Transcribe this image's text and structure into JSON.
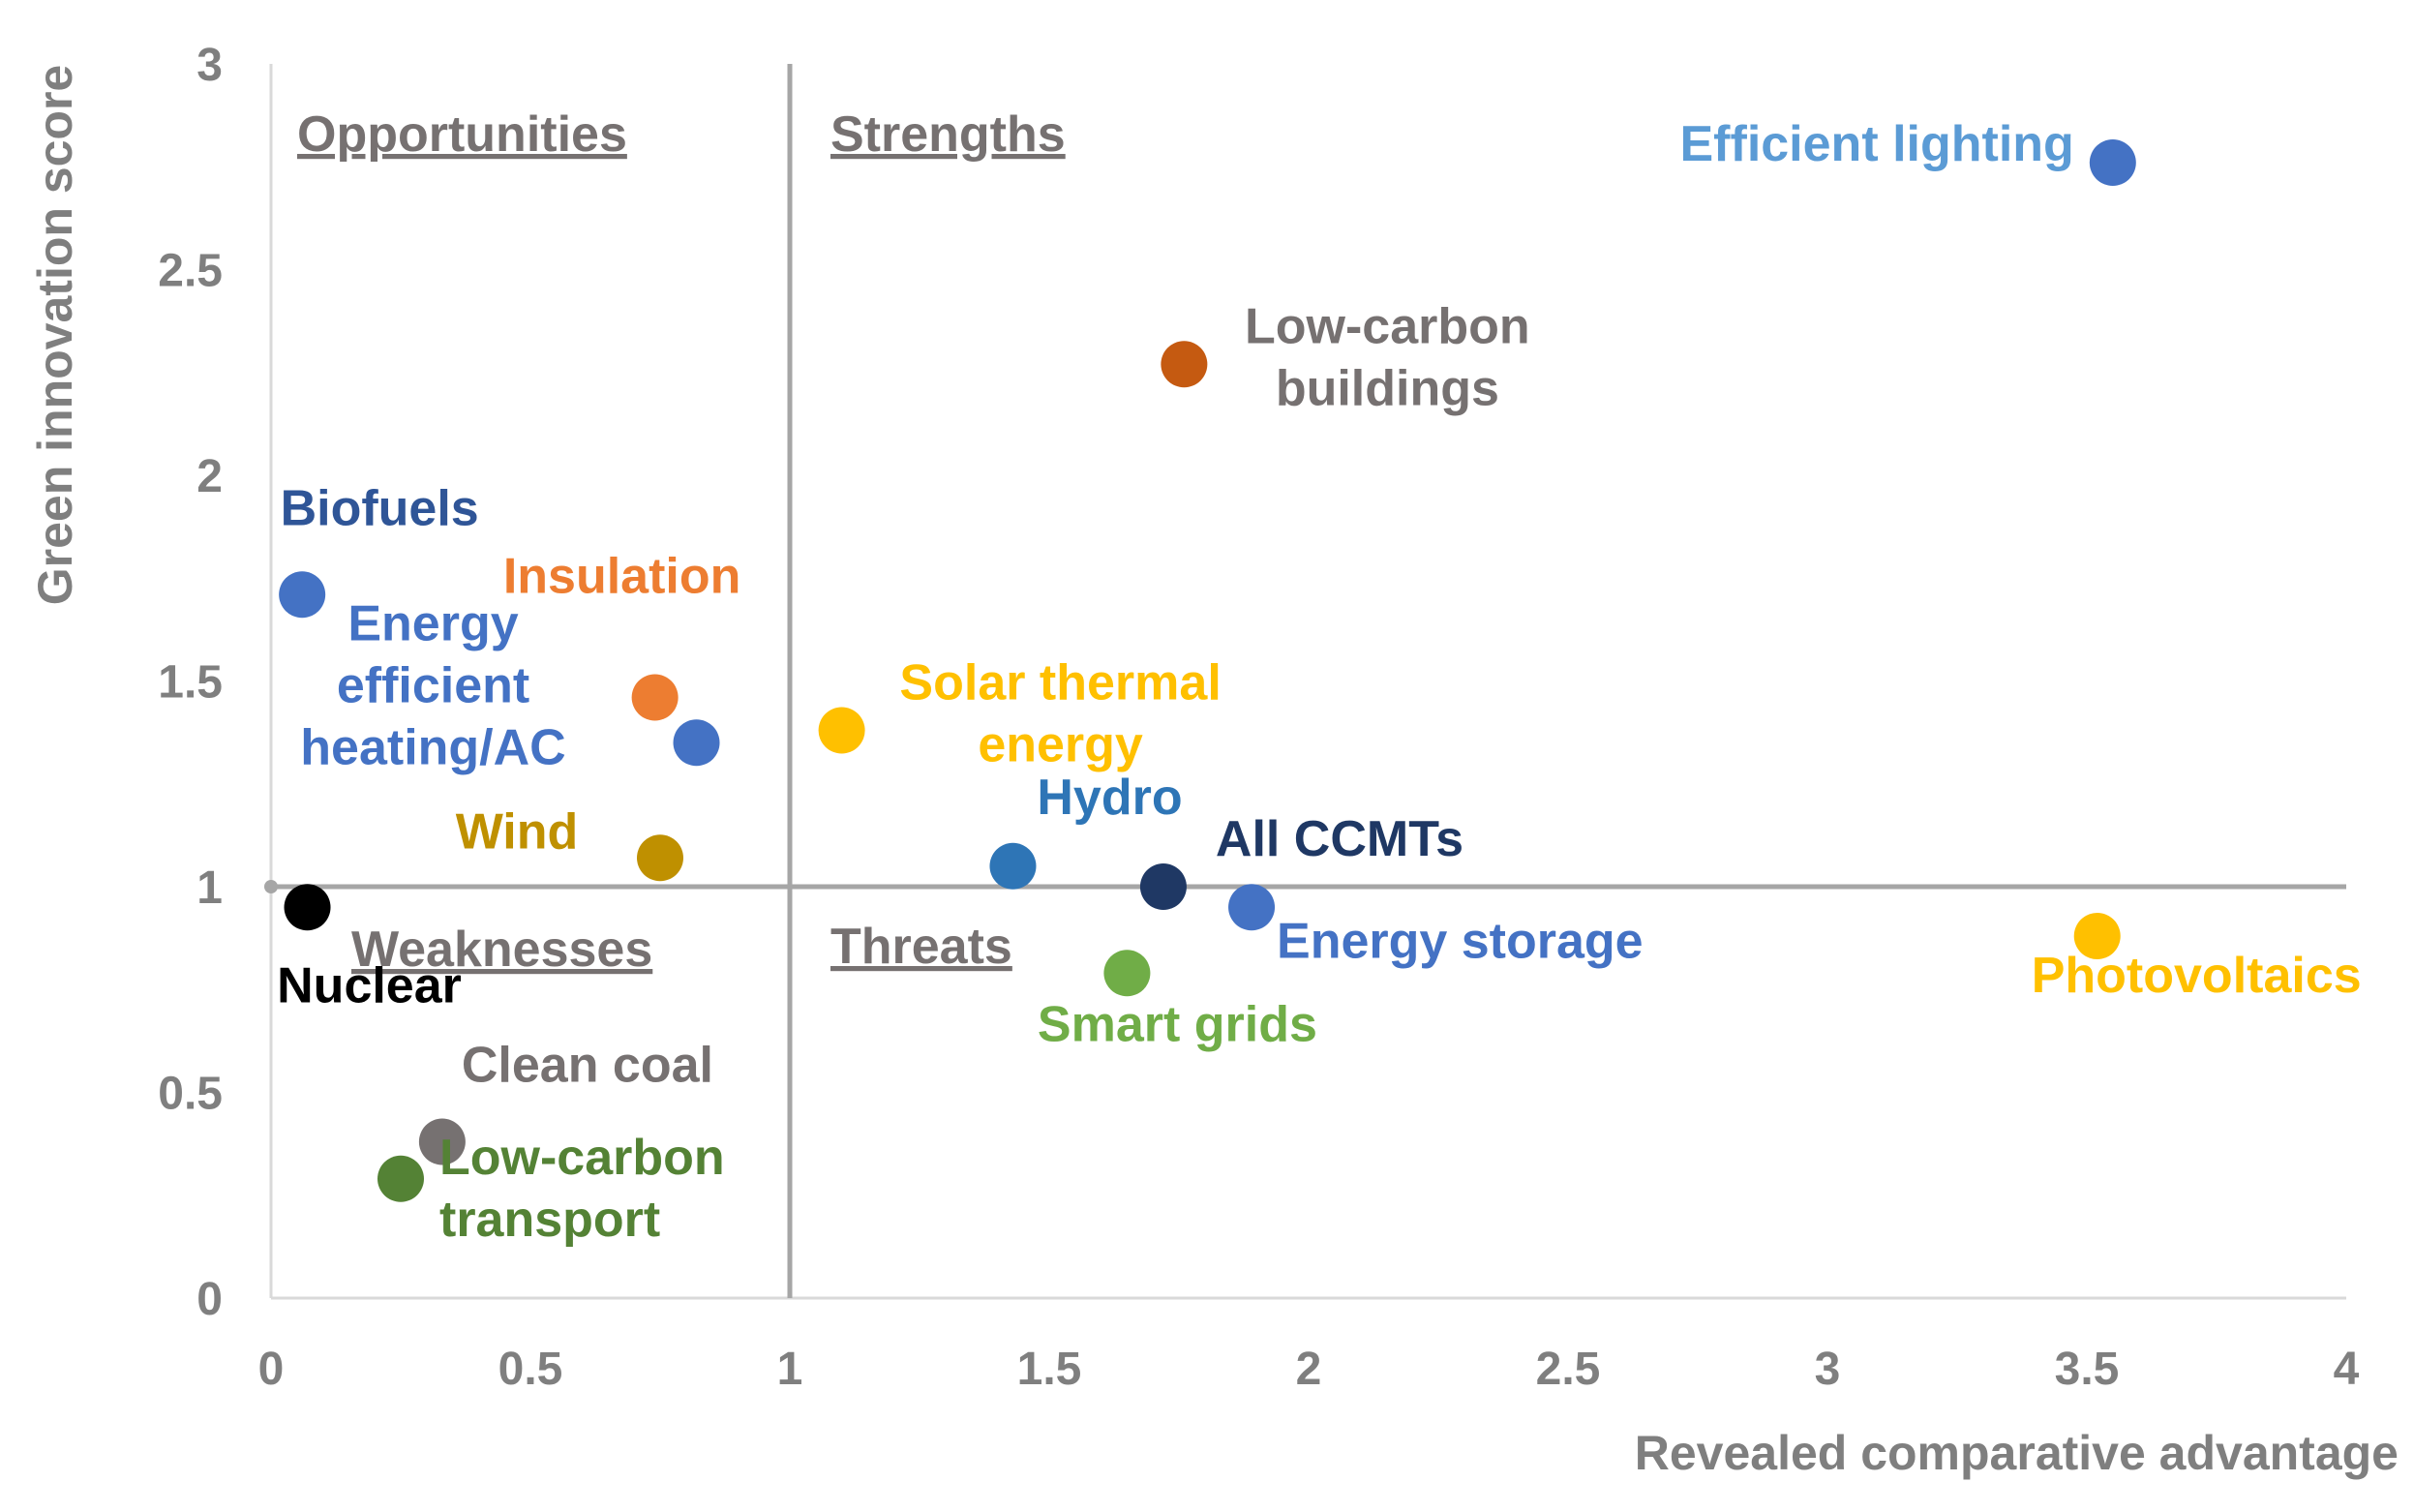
{
  "chart_data": {
    "type": "scatter",
    "title": "",
    "xlabel": "Revealed comparative advantage",
    "ylabel": "Green innovation score",
    "xlim": [
      0,
      4
    ],
    "ylim": [
      0,
      3
    ],
    "x_ticks": [
      "0",
      "0.5",
      "1",
      "1.5",
      "2",
      "2.5",
      "3",
      "3.5",
      "4"
    ],
    "y_ticks": [
      "0",
      "0.5",
      "1",
      "1.5",
      "2",
      "2.5",
      "3"
    ],
    "reference_lines": {
      "x": 1,
      "y": 1
    },
    "quadrants": [
      {
        "name": "Opportunities",
        "position": "top-left"
      },
      {
        "name": "Strengths",
        "position": "top-right"
      },
      {
        "name": "Weaknesses",
        "position": "bottom-left"
      },
      {
        "name": "Threats",
        "position": "bottom-right"
      }
    ],
    "points": [
      {
        "label": [
          "Efficient lighting"
        ],
        "x": 3.55,
        "y": 2.76,
        "color": "#4472c4",
        "label_color": "#5b9bd5"
      },
      {
        "label": [
          "Low-carbon",
          "buildings"
        ],
        "x": 1.76,
        "y": 2.27,
        "color": "#c55a11",
        "label_color": "#767171"
      },
      {
        "label": [
          "Biofuels"
        ],
        "x": 0.06,
        "y": 1.71,
        "color": "#4472c4",
        "label_color": "#2f5597"
      },
      {
        "label": [
          "Insulation"
        ],
        "x": 0.74,
        "y": 1.46,
        "color": "#ed7d31",
        "label_color": "#ed7d31"
      },
      {
        "label": [
          "Energy",
          "efficient",
          "heating/AC"
        ],
        "x": 0.82,
        "y": 1.35,
        "color": "#4472c4",
        "label_color": "#4472c4"
      },
      {
        "label": [
          "Solar thermal",
          "energy"
        ],
        "x": 1.1,
        "y": 1.38,
        "color": "#ffc000",
        "label_color": "#ffc000"
      },
      {
        "label": [
          "Wind"
        ],
        "x": 0.75,
        "y": 1.07,
        "color": "#bf9000",
        "label_color": "#bf9000"
      },
      {
        "label": [
          "Hydro"
        ],
        "x": 1.43,
        "y": 1.05,
        "color": "#2e75b6",
        "label_color": "#2e75b6"
      },
      {
        "label": [
          "All CCMTs"
        ],
        "x": 1.72,
        "y": 1.0,
        "color": "#1f3864",
        "label_color": "#1f3864"
      },
      {
        "label": [
          "Energy storage"
        ],
        "x": 1.89,
        "y": 0.95,
        "color": "#4472c4",
        "label_color": "#4472c4"
      },
      {
        "label": [
          "Photovoltaics"
        ],
        "x": 3.52,
        "y": 0.88,
        "color": "#ffc000",
        "label_color": "#ffc000"
      },
      {
        "label": [
          "Smart grids"
        ],
        "x": 1.65,
        "y": 0.79,
        "color": "#70ad47",
        "label_color": "#70ad47"
      },
      {
        "label": [
          "Nuclear"
        ],
        "x": 0.07,
        "y": 0.95,
        "color": "#000000",
        "label_color": "#000000"
      },
      {
        "label": [
          "Clean coal"
        ],
        "x": 0.33,
        "y": 0.38,
        "color": "#767171",
        "label_color": "#767171"
      },
      {
        "label": [
          "Low-carbon",
          "transport"
        ],
        "x": 0.25,
        "y": 0.29,
        "color": "#548235",
        "label_color": "#548235"
      }
    ]
  }
}
